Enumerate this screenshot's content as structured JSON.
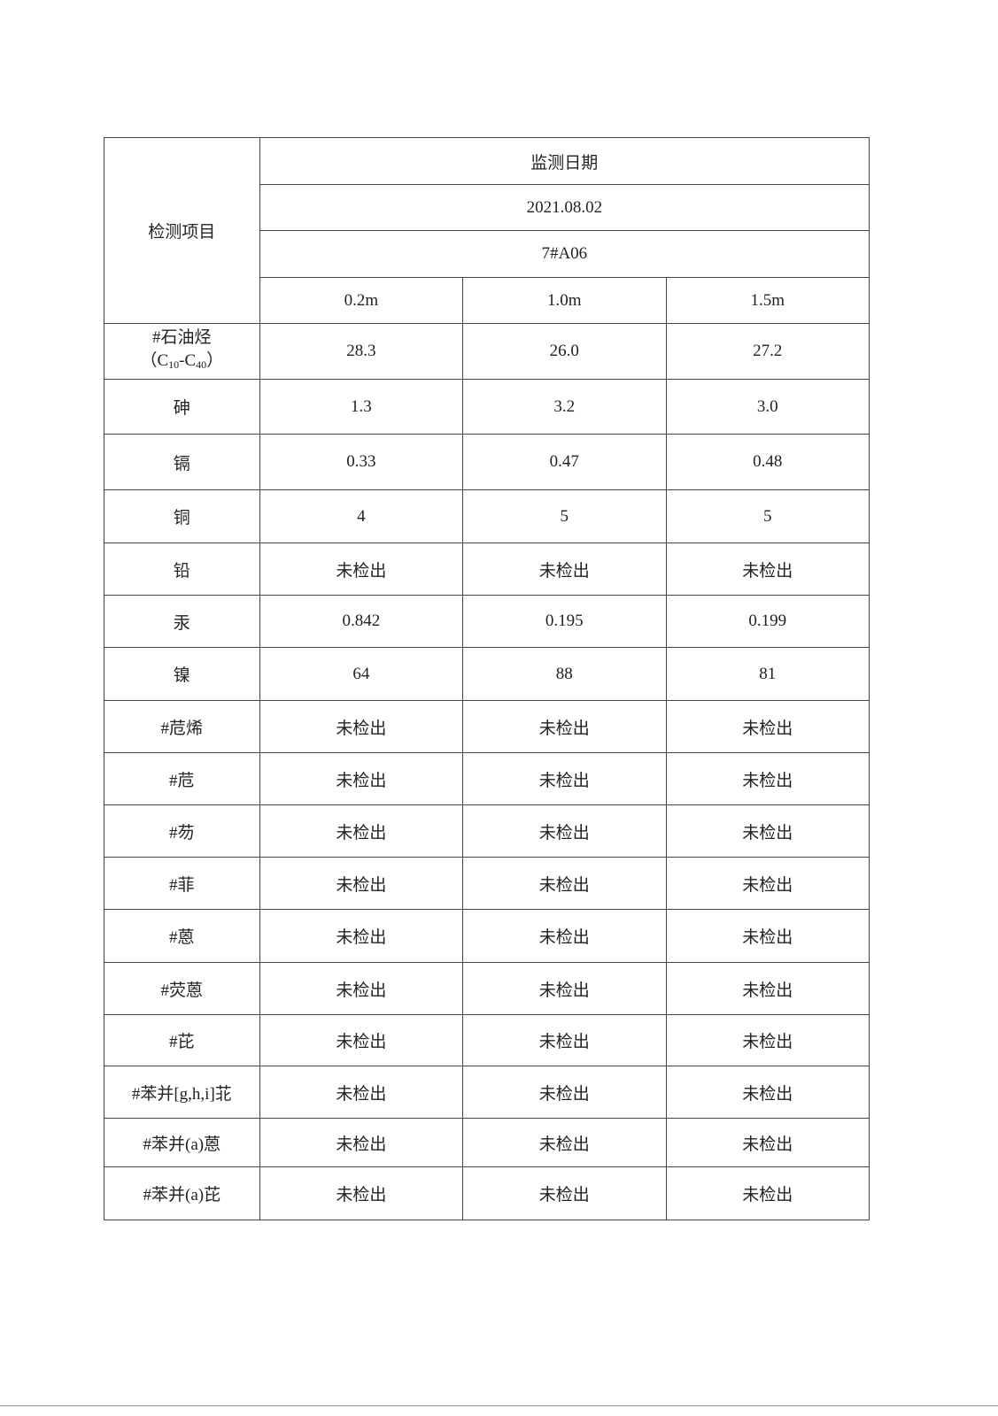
{
  "header": {
    "item_label": "检测项目",
    "date_label": "监测日期",
    "date": "2021.08.02",
    "site": "7#A06",
    "depths": [
      "0.2m",
      "1.0m",
      "1.5m"
    ]
  },
  "first_row": {
    "name_line1": "#石油烃",
    "name_open": "（C",
    "sub1": "10",
    "mid": "-C",
    "sub2": "40",
    "name_close": "）",
    "values": [
      "28.3",
      "26.0",
      "27.2"
    ]
  },
  "rows": [
    {
      "name": "砷",
      "values": [
        "1.3",
        "3.2",
        "3.0"
      ]
    },
    {
      "name": "镉",
      "values": [
        "0.33",
        "0.47",
        "0.48"
      ]
    },
    {
      "name": "铜",
      "values": [
        "4",
        "5",
        "5"
      ]
    },
    {
      "name": "铅",
      "values": [
        "未检出",
        "未检出",
        "未检出"
      ]
    },
    {
      "name": "汞",
      "values": [
        "0.842",
        "0.195",
        "0.199"
      ]
    },
    {
      "name": "镍",
      "values": [
        "64",
        "88",
        "81"
      ]
    },
    {
      "name": "#苊烯",
      "values": [
        "未检出",
        "未检出",
        "未检出"
      ]
    },
    {
      "name": "#苊",
      "values": [
        "未检出",
        "未检出",
        "未检出"
      ]
    },
    {
      "name": "#芴",
      "values": [
        "未检出",
        "未检出",
        "未检出"
      ]
    },
    {
      "name": "#菲",
      "values": [
        "未检出",
        "未检出",
        "未检出"
      ]
    },
    {
      "name": "#蒽",
      "values": [
        "未检出",
        "未检出",
        "未检出"
      ]
    },
    {
      "name": "#荧蒽",
      "values": [
        "未检出",
        "未检出",
        "未检出"
      ]
    },
    {
      "name": "#芘",
      "values": [
        "未检出",
        "未检出",
        "未检出"
      ]
    },
    {
      "name": "#苯并[g,h,i]苝",
      "values": [
        "未检出",
        "未检出",
        "未检出"
      ]
    },
    {
      "name": "#苯并(a)蒽",
      "values": [
        "未检出",
        "未检出",
        "未检出"
      ]
    },
    {
      "name": "#苯并(a)芘",
      "values": [
        "未检出",
        "未检出",
        "未检出"
      ]
    }
  ]
}
